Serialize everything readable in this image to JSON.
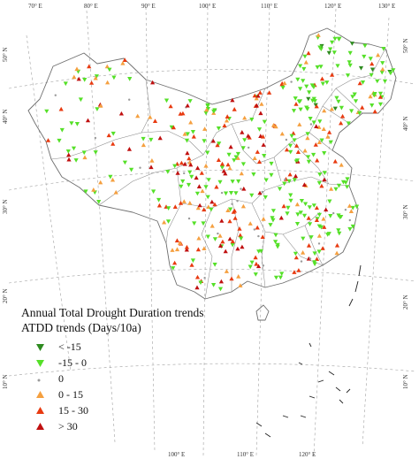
{
  "legend": {
    "title": "Annual Total Drought Duration trends",
    "subtitle": "ATDD trends (Days/10a)",
    "items": [
      {
        "label": "< -15",
        "symbol": "triangle-down",
        "color": "#2e8b20"
      },
      {
        "label": "-15 - 0",
        "symbol": "triangle-down",
        "color": "#55e028"
      },
      {
        "label": "0",
        "symbol": "dot",
        "color": "#9a9a9a"
      },
      {
        "label": "0 - 15",
        "symbol": "triangle-up",
        "color": "#f5a040"
      },
      {
        "label": "15 - 30",
        "symbol": "triangle-up",
        "color": "#e83a10"
      },
      {
        "label": "> 30",
        "symbol": "triangle-up",
        "color": "#c01010"
      }
    ]
  },
  "ticks": {
    "top": [
      "70° E",
      "80° E",
      "90° E",
      "100° E",
      "110° E",
      "120° E",
      "130° E"
    ],
    "left": [
      "50° N",
      "40° N",
      "30° N",
      "20° N",
      "10° N"
    ],
    "right": [
      "50° N",
      "40° N",
      "30° N",
      "20° N",
      "10° N"
    ],
    "bottom": [
      "100° E",
      "110° E",
      "120° E"
    ]
  },
  "colors": {
    "border": "#7a7a7a",
    "graticule": "#9a9a9a",
    "coast": "#222222"
  }
}
